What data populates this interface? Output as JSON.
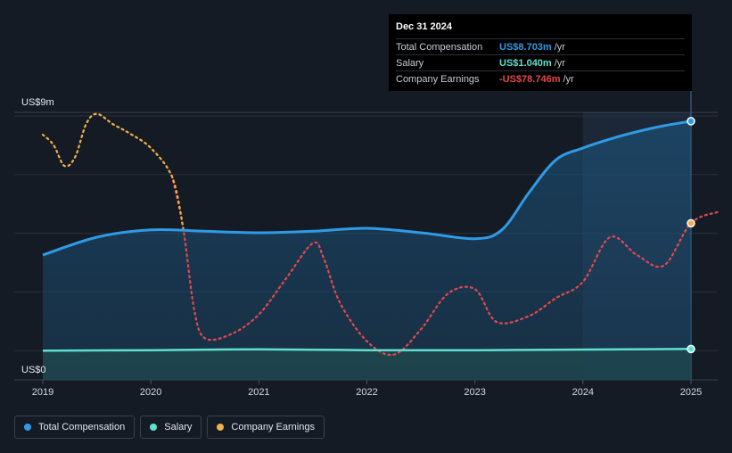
{
  "colors": {
    "total_compensation": "#2f9be6",
    "salary": "#5fe0cf",
    "company_earnings": "#e5484d",
    "company_earnings_positive": "#f0b04a",
    "background": "#151b24"
  },
  "tooltip": {
    "date": "Dec 31 2024",
    "rows": [
      {
        "label": "Total Compensation",
        "value": "US$8.703m",
        "unit": "/yr",
        "color": "#2f9be6"
      },
      {
        "label": "Salary",
        "value": "US$1.040m",
        "unit": "/yr",
        "color": "#5fe0cf"
      },
      {
        "label": "Company Earnings",
        "value": "-US$78.746m",
        "unit": "/yr",
        "color": "#e5484d"
      }
    ]
  },
  "legend": [
    {
      "label": "Total Compensation",
      "color": "#2f9be6"
    },
    {
      "label": "Salary",
      "color": "#5fe0cf"
    },
    {
      "label": "Company Earnings",
      "color": "#f0b04a"
    }
  ],
  "chart_data": {
    "type": "line",
    "y_axis_labels": [
      "US$9m",
      "US$0"
    ],
    "ylim": [
      0,
      9
    ],
    "xlim": [
      2019,
      2025.25
    ],
    "x_ticks": [
      "2019",
      "2020",
      "2021",
      "2022",
      "2023",
      "2024",
      "2025"
    ],
    "grid": true,
    "highlight_range": [
      2024,
      2025
    ],
    "series": [
      {
        "name": "Total Compensation",
        "unit": "US$m",
        "style": "area",
        "points": [
          [
            2019,
            4.2
          ],
          [
            2019.5,
            4.8
          ],
          [
            2020,
            5.05
          ],
          [
            2020.5,
            5.0
          ],
          [
            2021,
            4.95
          ],
          [
            2021.5,
            5.0
          ],
          [
            2022,
            5.1
          ],
          [
            2022.5,
            4.95
          ],
          [
            2023,
            4.75
          ],
          [
            2023.25,
            5.05
          ],
          [
            2023.5,
            6.3
          ],
          [
            2023.75,
            7.4
          ],
          [
            2024,
            7.8
          ],
          [
            2024.25,
            8.1
          ],
          [
            2024.5,
            8.35
          ],
          [
            2024.75,
            8.55
          ],
          [
            2025,
            8.703
          ]
        ]
      },
      {
        "name": "Salary",
        "unit": "US$m",
        "style": "area",
        "points": [
          [
            2019,
            0.98
          ],
          [
            2020,
            1.0
          ],
          [
            2021,
            1.03
          ],
          [
            2022,
            1.0
          ],
          [
            2023,
            1.0
          ],
          [
            2024,
            1.02
          ],
          [
            2025,
            1.04
          ]
        ]
      },
      {
        "name": "Company Earnings",
        "unit": "relative",
        "style": "dotted",
        "points": [
          [
            2019,
            8.25
          ],
          [
            2019.1,
            7.9
          ],
          [
            2019.2,
            7.2
          ],
          [
            2019.3,
            7.5
          ],
          [
            2019.4,
            8.6
          ],
          [
            2019.5,
            8.95
          ],
          [
            2019.65,
            8.6
          ],
          [
            2019.8,
            8.3
          ],
          [
            2020,
            7.8
          ],
          [
            2020.2,
            6.8
          ],
          [
            2020.3,
            5.1
          ],
          [
            2020.4,
            2.4
          ],
          [
            2020.5,
            1.4
          ],
          [
            2020.75,
            1.55
          ],
          [
            2021,
            2.2
          ],
          [
            2021.25,
            3.4
          ],
          [
            2021.5,
            4.6
          ],
          [
            2021.6,
            4.1
          ],
          [
            2021.75,
            2.6
          ],
          [
            2022,
            1.3
          ],
          [
            2022.25,
            0.85
          ],
          [
            2022.5,
            1.7
          ],
          [
            2022.75,
            2.9
          ],
          [
            2023,
            3.05
          ],
          [
            2023.2,
            1.95
          ],
          [
            2023.5,
            2.15
          ],
          [
            2023.75,
            2.75
          ],
          [
            2024,
            3.3
          ],
          [
            2024.25,
            4.8
          ],
          [
            2024.5,
            4.2
          ],
          [
            2024.75,
            3.85
          ],
          [
            2025,
            5.27
          ],
          [
            2025.25,
            5.65
          ]
        ]
      }
    ]
  }
}
